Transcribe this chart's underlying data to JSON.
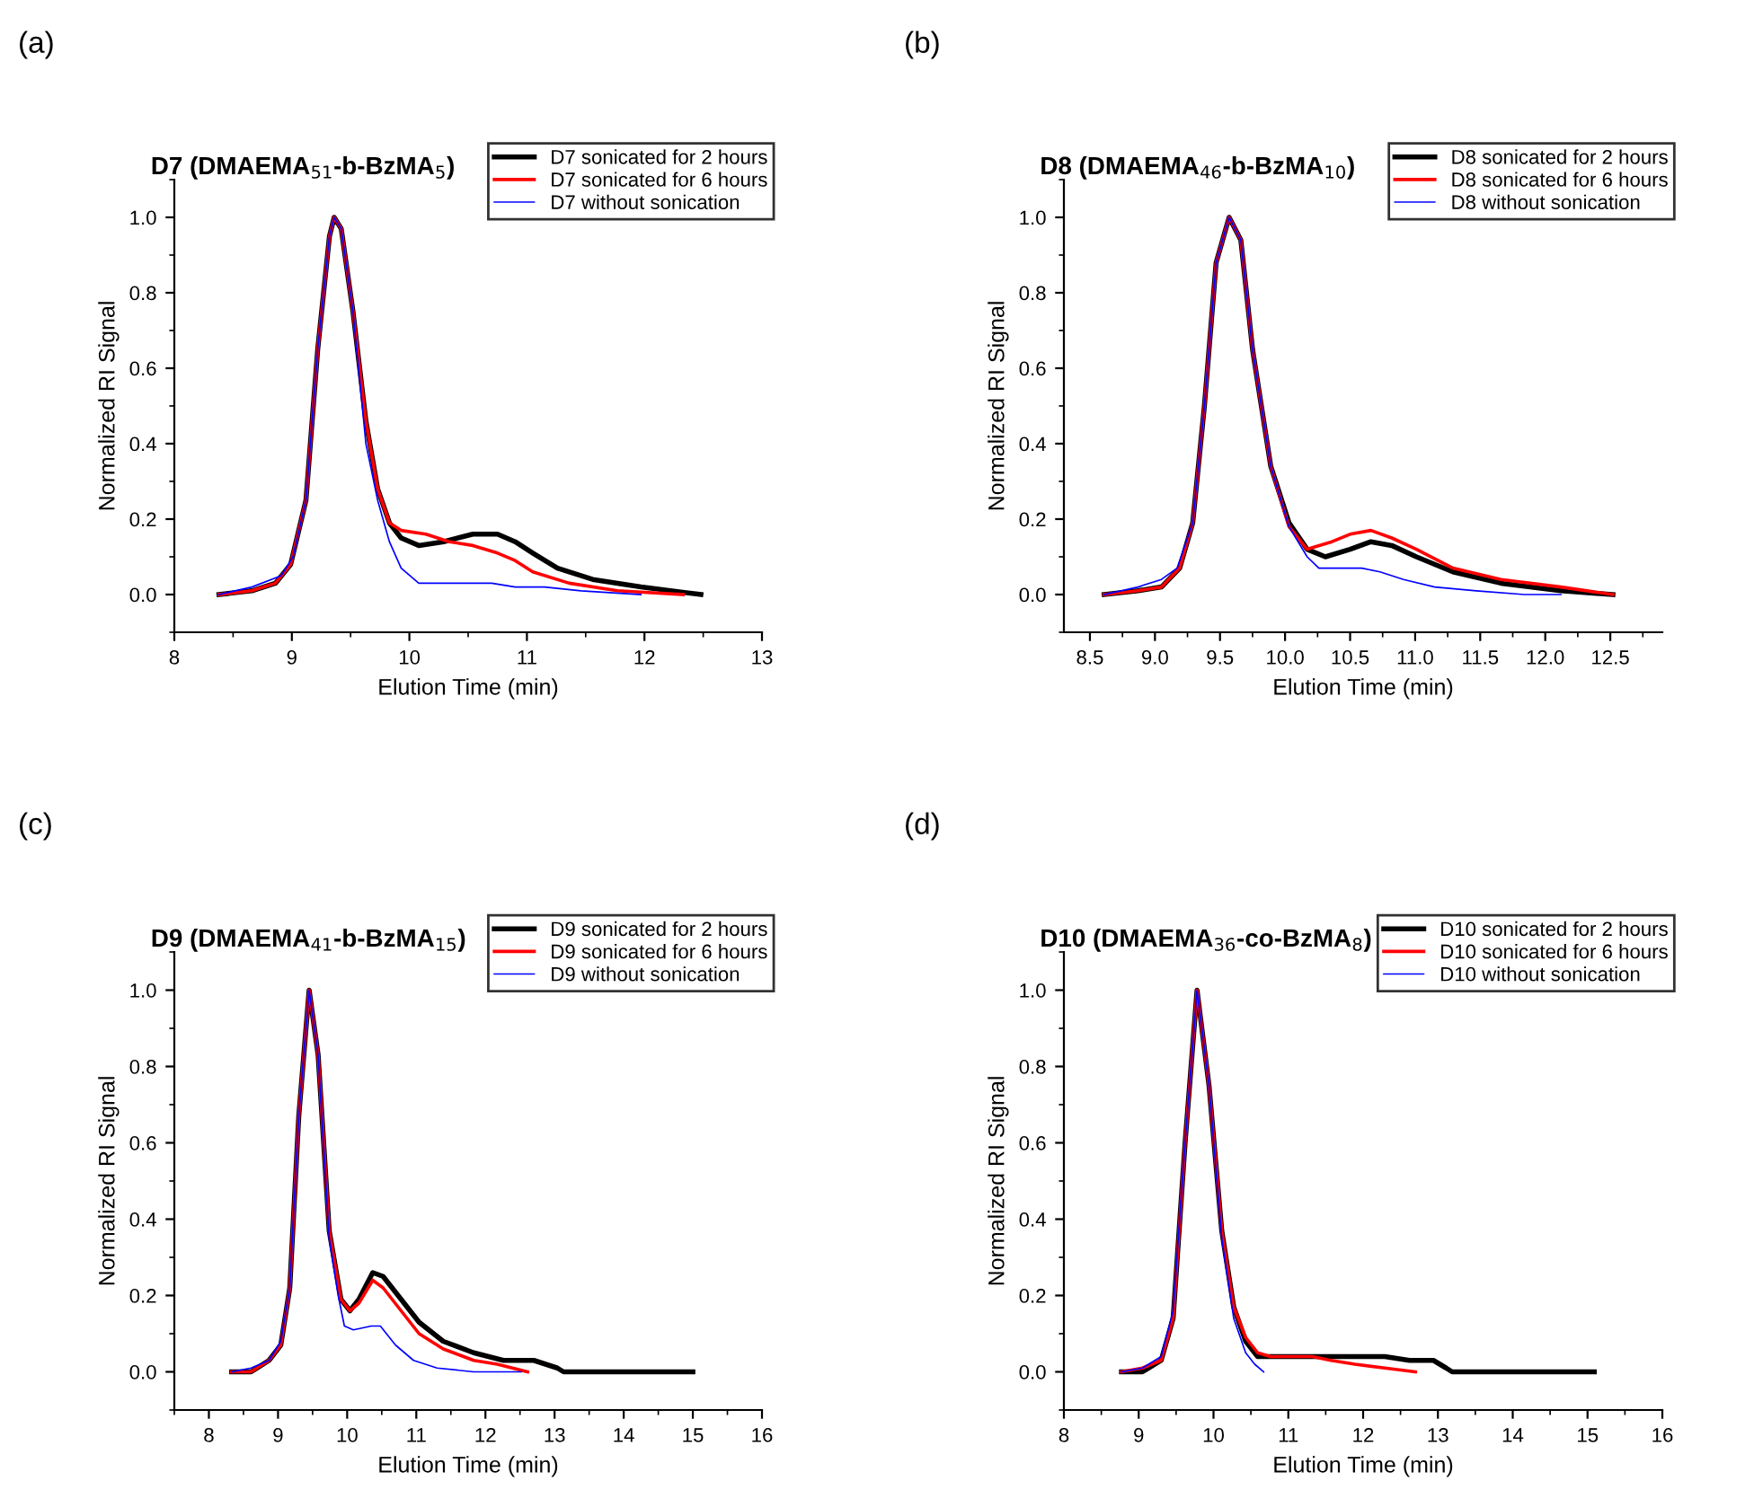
{
  "chart_data": [
    {
      "type": "line",
      "title": "D7 (DMAEMA$_{51}$-b-BzMA$_{5}$)",
      "xlabel": "Elution Time (min)",
      "ylabel": "Normalized RI Signal",
      "annotations": [
        "(a)"
      ],
      "legend": "top right",
      "grid": false,
      "line_style": "solid",
      "xlim": [
        8,
        13
      ],
      "xticks": [
        8,
        9,
        10,
        11,
        12,
        13
      ],
      "ylim": [
        -0.1,
        1.1
      ],
      "yticks": [
        {
          "value": 0,
          "label": "0.0"
        },
        {
          "value": 0.2,
          "label": "0.2"
        },
        {
          "value": 0.4,
          "label": "0.4"
        },
        {
          "value": 0.6,
          "label": "0.6"
        },
        {
          "value": 0.8,
          "label": "0.8"
        },
        {
          "value": 1,
          "label": "1.0"
        }
      ],
      "series": [
        {
          "name": "D7 sonicated for 2 hours",
          "color": "#000000",
          "x": [
            8.38,
            8.66,
            8.86,
            8.99,
            9.12,
            9.22,
            9.32,
            9.36,
            9.42,
            9.52,
            9.63,
            9.73,
            9.83,
            9.93,
            10.08,
            10.29,
            10.54,
            10.75,
            10.9,
            11.05,
            11.26,
            11.56,
            11.97,
            12.48
          ],
          "values": [
            0,
            0.01,
            0.03,
            0.08,
            0.25,
            0.65,
            0.95,
            1.0,
            0.97,
            0.75,
            0.46,
            0.28,
            0.19,
            0.15,
            0.13,
            0.14,
            0.16,
            0.16,
            0.14,
            0.11,
            0.07,
            0.04,
            0.02,
            0
          ]
        },
        {
          "name": "D7 sonicated for 6 hours",
          "color": "#ff0000",
          "x": [
            8.38,
            8.66,
            8.86,
            8.99,
            9.12,
            9.22,
            9.32,
            9.36,
            9.42,
            9.52,
            9.63,
            9.73,
            9.83,
            9.93,
            10.14,
            10.34,
            10.54,
            10.75,
            10.9,
            11.05,
            11.36,
            11.77,
            12.33
          ],
          "values": [
            0,
            0.01,
            0.03,
            0.08,
            0.25,
            0.65,
            0.95,
            1.0,
            0.97,
            0.75,
            0.46,
            0.28,
            0.19,
            0.17,
            0.16,
            0.14,
            0.13,
            0.11,
            0.09,
            0.06,
            0.03,
            0.01,
            0
          ]
        },
        {
          "name": "D7 without sonication",
          "color": "#0000ff",
          "x": [
            8.38,
            8.66,
            8.91,
            9.01,
            9.12,
            9.22,
            9.32,
            9.36,
            9.42,
            9.52,
            9.63,
            9.73,
            9.83,
            9.93,
            10.08,
            10.29,
            10.49,
            10.7,
            10.9,
            11.15,
            11.46,
            11.97
          ],
          "values": [
            0,
            0.02,
            0.05,
            0.1,
            0.25,
            0.65,
            0.95,
            1.0,
            0.97,
            0.75,
            0.4,
            0.25,
            0.14,
            0.07,
            0.03,
            0.03,
            0.03,
            0.03,
            0.02,
            0.02,
            0.01,
            0
          ]
        }
      ]
    },
    {
      "type": "line",
      "title": "D8 (DMAEMA$_{46}$-b-BzMA$_{10}$)",
      "xlabel": "Elution Time (min)",
      "ylabel": "Normalized RI Signal",
      "annotations": [
        "(b)"
      ],
      "legend": "top right",
      "grid": false,
      "line_style": "solid",
      "xlim": [
        8.3,
        12.9
      ],
      "xticks": [
        {
          "value": 8.5,
          "label": "8.5"
        },
        {
          "value": 9,
          "label": "9.0"
        },
        {
          "value": 9.5,
          "label": "9.5"
        },
        {
          "value": 10,
          "label": "10.0"
        },
        {
          "value": 10.5,
          "label": "10.5"
        },
        {
          "value": 11,
          "label": "11.0"
        },
        {
          "value": 11.5,
          "label": "11.5"
        },
        {
          "value": 12,
          "label": "12.0"
        },
        {
          "value": 12.5,
          "label": "12.5"
        }
      ],
      "ylim": [
        -0.1,
        1.1
      ],
      "yticks": [
        {
          "value": 0,
          "label": "0.0"
        },
        {
          "value": 0.2,
          "label": "0.2"
        },
        {
          "value": 0.4,
          "label": "0.4"
        },
        {
          "value": 0.6,
          "label": "0.6"
        },
        {
          "value": 0.8,
          "label": "0.8"
        },
        {
          "value": 1,
          "label": "1.0"
        }
      ],
      "series": [
        {
          "name": "D8 sonicated for 2 hours",
          "color": "#000000",
          "x": [
            8.61,
            8.87,
            9.05,
            9.19,
            9.29,
            9.38,
            9.47,
            9.57,
            9.66,
            9.75,
            9.89,
            10.03,
            10.17,
            10.31,
            10.5,
            10.66,
            10.82,
            11.01,
            11.29,
            11.66,
            12.12,
            12.52
          ],
          "values": [
            0,
            0.01,
            0.02,
            0.07,
            0.19,
            0.5,
            0.88,
            1.0,
            0.94,
            0.65,
            0.34,
            0.19,
            0.12,
            0.1,
            0.12,
            0.14,
            0.13,
            0.1,
            0.06,
            0.03,
            0.01,
            0
          ]
        },
        {
          "name": "D8 sonicated for 6 hours",
          "color": "#ff0000",
          "x": [
            8.61,
            8.87,
            9.05,
            9.19,
            9.29,
            9.38,
            9.47,
            9.57,
            9.66,
            9.75,
            9.89,
            10.03,
            10.17,
            10.36,
            10.5,
            10.66,
            10.82,
            11.01,
            11.29,
            11.66,
            12.12,
            12.52
          ],
          "values": [
            0,
            0.01,
            0.02,
            0.07,
            0.19,
            0.5,
            0.88,
            1.0,
            0.94,
            0.65,
            0.34,
            0.18,
            0.12,
            0.14,
            0.16,
            0.17,
            0.15,
            0.12,
            0.07,
            0.04,
            0.02,
            0
          ]
        },
        {
          "name": "D8 without sonication",
          "color": "#0000ff",
          "x": [
            8.61,
            8.87,
            9.05,
            9.17,
            9.29,
            9.38,
            9.47,
            9.57,
            9.66,
            9.75,
            9.89,
            10.03,
            10.17,
            10.26,
            10.45,
            10.59,
            10.73,
            10.91,
            11.15,
            11.47,
            11.84,
            12.12
          ],
          "values": [
            0,
            0.02,
            0.04,
            0.07,
            0.19,
            0.5,
            0.88,
            1.0,
            0.94,
            0.65,
            0.34,
            0.18,
            0.1,
            0.07,
            0.07,
            0.07,
            0.06,
            0.04,
            0.02,
            0.01,
            0,
            0
          ]
        }
      ]
    },
    {
      "type": "line",
      "title": "D9 (DMAEMA$_{41}$-b-BzMA$_{15}$)",
      "xlabel": "Elution Time (min)",
      "ylabel": "Normalized RI Signal",
      "annotations": [
        "(c)"
      ],
      "legend": "top right",
      "grid": false,
      "line_style": "solid",
      "xlim": [
        7.5,
        16
      ],
      "xticks": [
        8,
        9,
        10,
        11,
        12,
        13,
        14,
        15,
        16
      ],
      "ylim": [
        -0.1,
        1.1
      ],
      "yticks": [
        {
          "value": 0,
          "label": "0.0"
        },
        {
          "value": 0.2,
          "label": "0.2"
        },
        {
          "value": 0.4,
          "label": "0.4"
        },
        {
          "value": 0.6,
          "label": "0.6"
        },
        {
          "value": 0.8,
          "label": "0.8"
        },
        {
          "value": 1,
          "label": "1.0"
        }
      ],
      "series": [
        {
          "name": "D9 sonicated for 2 hours",
          "color": "#000000",
          "x": [
            8.33,
            8.61,
            8.87,
            9.04,
            9.17,
            9.3,
            9.45,
            9.58,
            9.74,
            9.91,
            10.04,
            10.17,
            10.37,
            10.52,
            10.78,
            11.04,
            11.39,
            11.83,
            12.26,
            12.7,
            13.04,
            13.13,
            15.0
          ],
          "values": [
            0,
            0,
            0.03,
            0.07,
            0.22,
            0.67,
            1.0,
            0.83,
            0.37,
            0.19,
            0.16,
            0.19,
            0.26,
            0.25,
            0.19,
            0.13,
            0.08,
            0.05,
            0.03,
            0.03,
            0.01,
            0,
            0
          ]
        },
        {
          "name": "D9 sonicated for 6 hours",
          "color": "#ff0000",
          "x": [
            8.33,
            8.61,
            8.87,
            9.04,
            9.17,
            9.3,
            9.45,
            9.58,
            9.74,
            9.91,
            10.04,
            10.17,
            10.37,
            10.52,
            10.78,
            11.04,
            11.39,
            11.83,
            12.17,
            12.61
          ],
          "values": [
            0,
            0,
            0.03,
            0.07,
            0.22,
            0.67,
            1.0,
            0.83,
            0.37,
            0.19,
            0.16,
            0.18,
            0.24,
            0.22,
            0.16,
            0.1,
            0.06,
            0.03,
            0.02,
            0
          ]
        },
        {
          "name": "D9 without sonication",
          "color": "#0000ff",
          "x": [
            8.33,
            8.61,
            8.87,
            9.04,
            9.17,
            9.3,
            9.45,
            9.58,
            9.74,
            9.87,
            9.96,
            10.09,
            10.35,
            10.48,
            10.7,
            10.96,
            11.3,
            11.83,
            12.52
          ],
          "values": [
            0,
            0.01,
            0.03,
            0.08,
            0.22,
            0.67,
            1.0,
            0.83,
            0.35,
            0.2,
            0.12,
            0.11,
            0.12,
            0.12,
            0.07,
            0.03,
            0.01,
            0,
            0
          ]
        }
      ]
    },
    {
      "type": "line",
      "title": "D10 (DMAEMA$_{36}$-co-BzMA$_{8}$)",
      "xlabel": "Elution Time (min)",
      "ylabel": "Normalized RI Signal",
      "annotations": [
        "(d)"
      ],
      "legend": "top right",
      "grid": false,
      "line_style": "solid",
      "xlim": [
        8,
        16
      ],
      "xticks": [
        8,
        9,
        10,
        11,
        12,
        13,
        14,
        15,
        16
      ],
      "ylim": [
        -0.1,
        1.1
      ],
      "yticks": [
        {
          "value": 0,
          "label": "0.0"
        },
        {
          "value": 0.2,
          "label": "0.2"
        },
        {
          "value": 0.4,
          "label": "0.4"
        },
        {
          "value": 0.6,
          "label": "0.6"
        },
        {
          "value": 0.8,
          "label": "0.8"
        },
        {
          "value": 1,
          "label": "1.0"
        }
      ],
      "series": [
        {
          "name": "D10 sonicated for 2 hours",
          "color": "#000000",
          "x": [
            8.77,
            9.05,
            9.3,
            9.46,
            9.62,
            9.78,
            9.94,
            10.11,
            10.27,
            10.43,
            10.59,
            10.76,
            11.0,
            11.24,
            11.57,
            11.97,
            12.29,
            12.62,
            12.94,
            13.11,
            13.19,
            15.09
          ],
          "values": [
            0,
            0,
            0.03,
            0.14,
            0.6,
            1.0,
            0.75,
            0.37,
            0.17,
            0.08,
            0.04,
            0.04,
            0.04,
            0.04,
            0.04,
            0.04,
            0.04,
            0.03,
            0.03,
            0.01,
            0,
            0
          ]
        },
        {
          "name": "D10 sonicated for 6 hours",
          "color": "#ff0000",
          "x": [
            8.77,
            9.05,
            9.3,
            9.46,
            9.62,
            9.78,
            9.94,
            10.11,
            10.27,
            10.43,
            10.59,
            10.76,
            11.08,
            11.32,
            11.57,
            11.89,
            12.29,
            12.7
          ],
          "values": [
            0,
            0.01,
            0.03,
            0.14,
            0.6,
            1.0,
            0.75,
            0.37,
            0.17,
            0.09,
            0.05,
            0.04,
            0.04,
            0.04,
            0.03,
            0.02,
            0.01,
            0
          ]
        },
        {
          "name": "D10 without sonication",
          "color": "#0000ff",
          "x": [
            8.77,
            9.05,
            9.3,
            9.46,
            9.62,
            9.78,
            9.94,
            10.11,
            10.27,
            10.43,
            10.55,
            10.67
          ],
          "values": [
            0,
            0.01,
            0.04,
            0.16,
            0.6,
            1.0,
            0.75,
            0.35,
            0.14,
            0.05,
            0.02,
            0
          ]
        }
      ]
    }
  ]
}
